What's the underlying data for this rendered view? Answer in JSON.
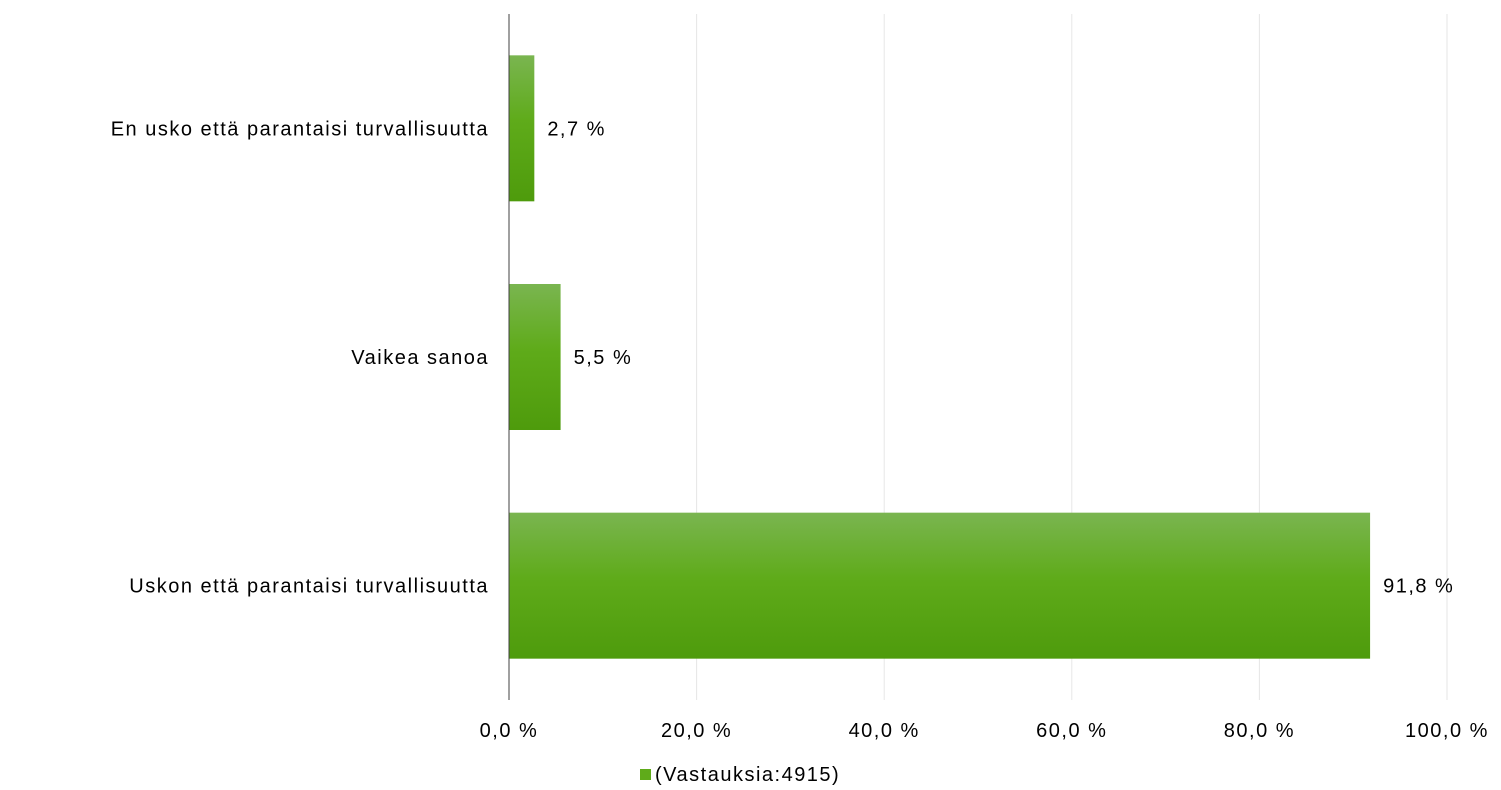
{
  "chart_data": {
    "type": "bar",
    "orientation": "horizontal",
    "title": "",
    "xlabel": "",
    "ylabel": "",
    "categories": [
      "En usko että  parantaisi turvallisuutta",
      "Vaikea sanoa",
      "Uskon että parantaisi turvallisuutta"
    ],
    "series": [
      {
        "name": "(Vastauksia:4915)",
        "values": [
          2.7,
          5.5,
          91.8
        ],
        "value_labels": [
          "2,7 %",
          "5,5 %",
          "91,8 %"
        ]
      }
    ],
    "xlim": [
      0,
      100
    ],
    "x_ticks": [
      0,
      20,
      40,
      60,
      80,
      100
    ],
    "x_tick_labels": [
      "0,0 %",
      "20,0 %",
      "40,0 %",
      "60,0 %",
      "80,0 %",
      "100,0 %"
    ],
    "grid": "vertical",
    "legend": "bottom",
    "colors": {
      "bar_top": "#7ab550",
      "bar_mid": "#5fab1a",
      "bar_bottom": "#4e9b0c",
      "grid": "#e6e6e6",
      "axis": "#404040",
      "text": "#000000"
    }
  }
}
